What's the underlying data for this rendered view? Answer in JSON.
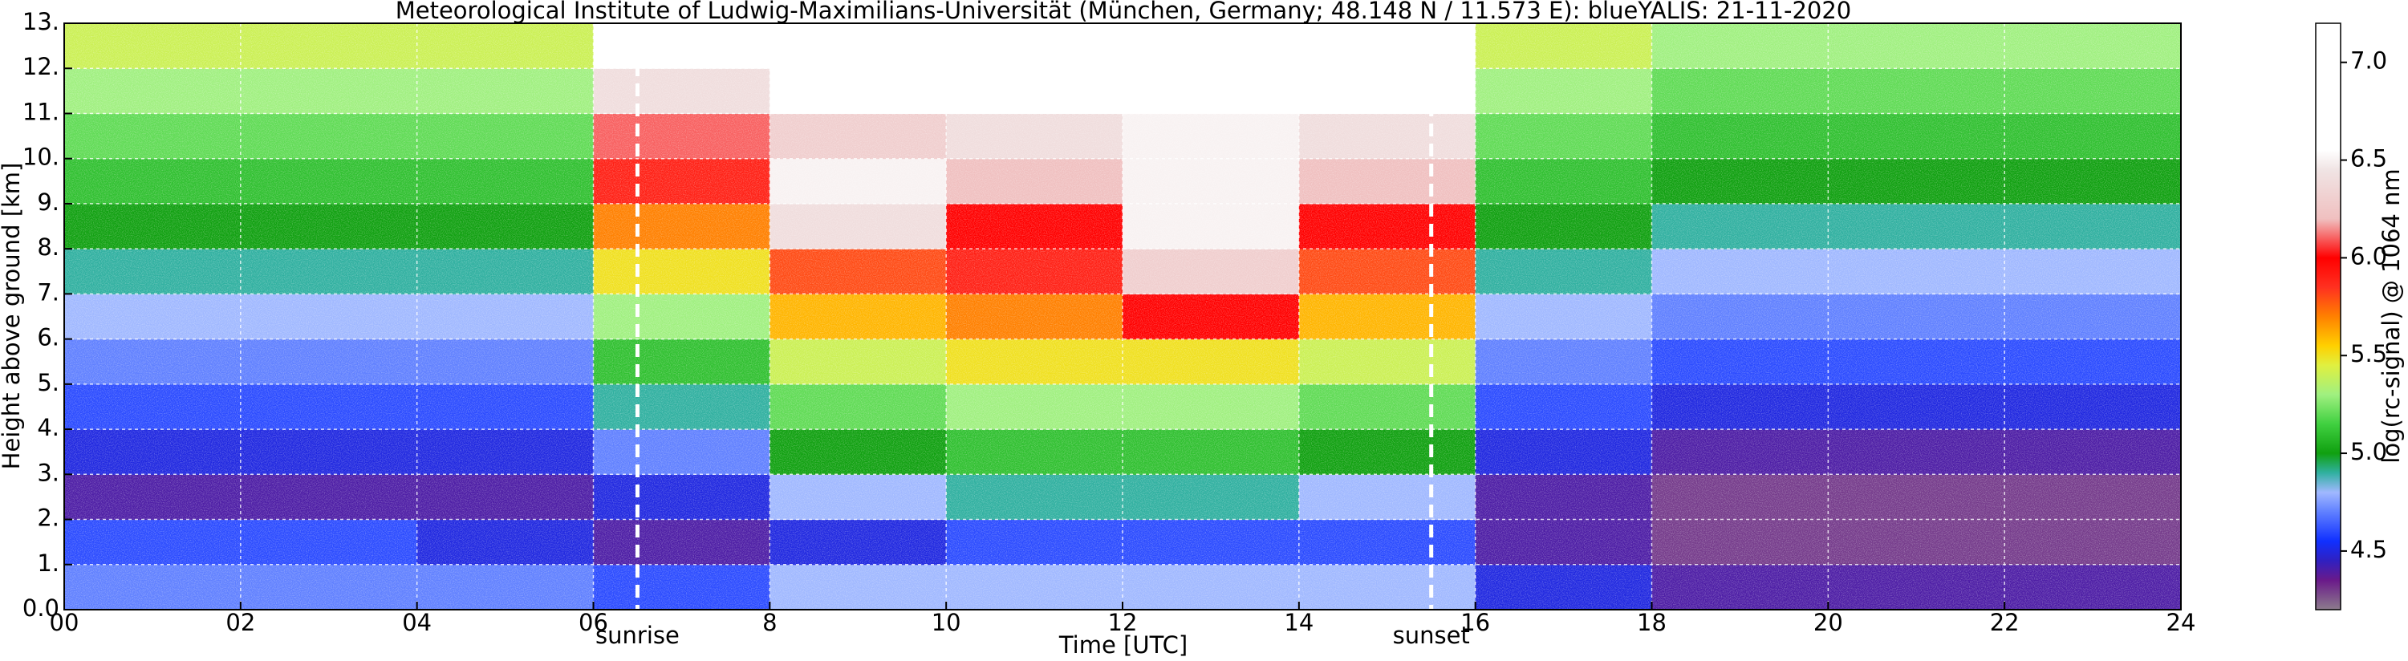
{
  "chart_data": {
    "type": "heatmap",
    "title": "Meteorological Institute of Ludwig-Maximilians-Universität (München, Germany; 48.148 N / 11.573 E):    blueYALIS: 21-11-2020",
    "x_label": "Time [UTC]",
    "y_label": "Height above ground [km]",
    "colorbar_label": "log(rc-signal) @ 1064 nm",
    "x_edges": [
      0,
      2,
      4,
      6,
      8,
      10,
      12,
      14,
      16,
      18,
      20,
      22,
      24
    ],
    "y_edges": [
      0,
      1,
      2,
      3,
      4,
      5,
      6,
      7,
      8,
      9,
      10,
      11,
      12,
      13
    ],
    "z": [
      [
        4.7,
        4.7,
        4.7,
        4.6,
        4.8,
        4.8,
        4.8,
        4.8,
        4.5,
        4.4,
        4.4,
        4.4
      ],
      [
        4.6,
        4.6,
        4.5,
        4.4,
        4.5,
        4.6,
        4.6,
        4.6,
        4.4,
        4.3,
        4.3,
        4.3
      ],
      [
        4.4,
        4.4,
        4.4,
        4.5,
        4.8,
        4.9,
        4.9,
        4.8,
        4.4,
        4.3,
        4.3,
        4.3
      ],
      [
        4.5,
        4.5,
        4.5,
        4.7,
        5.0,
        5.1,
        5.1,
        5.0,
        4.5,
        4.4,
        4.4,
        4.4
      ],
      [
        4.6,
        4.6,
        4.6,
        4.9,
        5.2,
        5.3,
        5.3,
        5.2,
        4.6,
        4.5,
        4.5,
        4.5
      ],
      [
        4.7,
        4.7,
        4.7,
        5.1,
        5.4,
        5.5,
        5.5,
        5.4,
        4.7,
        4.6,
        4.6,
        4.6
      ],
      [
        4.8,
        4.8,
        4.8,
        5.3,
        5.6,
        5.7,
        6.0,
        5.6,
        4.8,
        4.7,
        4.7,
        4.7
      ],
      [
        4.9,
        4.9,
        4.9,
        5.5,
        5.8,
        5.9,
        6.3,
        5.8,
        4.9,
        4.8,
        4.8,
        4.8
      ],
      [
        5.0,
        5.0,
        5.0,
        5.7,
        6.4,
        6.0,
        6.5,
        6.0,
        5.0,
        4.9,
        4.9,
        4.9
      ],
      [
        5.1,
        5.1,
        5.1,
        5.9,
        6.5,
        6.2,
        6.5,
        6.2,
        5.1,
        5.0,
        5.0,
        5.0
      ],
      [
        5.2,
        5.2,
        5.2,
        6.1,
        6.3,
        6.4,
        6.5,
        6.4,
        5.2,
        5.1,
        5.1,
        5.1
      ],
      [
        5.3,
        5.3,
        5.3,
        6.4,
        6.6,
        6.7,
        6.7,
        6.6,
        5.3,
        5.2,
        5.2,
        5.2
      ],
      [
        5.4,
        5.4,
        5.4,
        6.8,
        6.9,
        7.0,
        7.0,
        6.9,
        5.4,
        5.3,
        5.3,
        5.3
      ]
    ],
    "xlim": [
      0,
      24
    ],
    "xticks": [
      {
        "value": 0,
        "label": "00"
      },
      {
        "value": 2,
        "label": "02"
      },
      {
        "value": 4,
        "label": "04"
      },
      {
        "value": 6,
        "label": "06"
      },
      8,
      10,
      12,
      14,
      16,
      18,
      20,
      22,
      24
    ],
    "ylim": [
      0,
      13
    ],
    "yticks": [
      {
        "value": 0,
        "label": "0.0"
      },
      {
        "value": 1,
        "label": "1."
      },
      {
        "value": 2,
        "label": "2."
      },
      {
        "value": 3,
        "label": "3."
      },
      {
        "value": 4,
        "label": "4."
      },
      {
        "value": 5,
        "label": "5."
      },
      {
        "value": 6,
        "label": "6."
      },
      {
        "value": 7,
        "label": "7."
      },
      {
        "value": 8,
        "label": "8."
      },
      {
        "value": 9,
        "label": "9."
      },
      {
        "value": 10,
        "label": "10."
      },
      {
        "value": 11,
        "label": "11."
      },
      {
        "value": 12,
        "label": "12."
      },
      {
        "value": 13,
        "label": "13."
      }
    ],
    "clim": [
      4.2,
      7.2
    ],
    "cticks": [
      4.5,
      {
        "value": 5,
        "label": "5.0"
      },
      5.5,
      {
        "value": 6,
        "label": "6.0"
      },
      6.5,
      {
        "value": 7,
        "label": "7.0"
      }
    ],
    "colorscale": [
      [
        4.2,
        "#8c7c8c"
      ],
      [
        4.35,
        "#6a1a8a"
      ],
      [
        4.45,
        "#3020c0"
      ],
      [
        4.55,
        "#1030ff"
      ],
      [
        4.7,
        "#6080ff"
      ],
      [
        4.8,
        "#a0b8ff"
      ],
      [
        4.9,
        "#30b0a0"
      ],
      [
        5.0,
        "#10a010"
      ],
      [
        5.15,
        "#40d040"
      ],
      [
        5.3,
        "#a0f080"
      ],
      [
        5.45,
        "#e0f040"
      ],
      [
        5.55,
        "#ffd000"
      ],
      [
        5.7,
        "#ff8000"
      ],
      [
        5.85,
        "#ff3020"
      ],
      [
        6.0,
        "#ff0000"
      ],
      [
        6.2,
        "#f0c0c0"
      ],
      [
        6.45,
        "#f0e4e4"
      ],
      [
        6.55,
        "#ffffff"
      ],
      [
        7.2,
        "#ffffff"
      ]
    ],
    "grid": true,
    "annotations": [
      {
        "text": "sunrise",
        "x": 6.5
      },
      {
        "text": "sunset",
        "x": 15.5
      }
    ]
  }
}
